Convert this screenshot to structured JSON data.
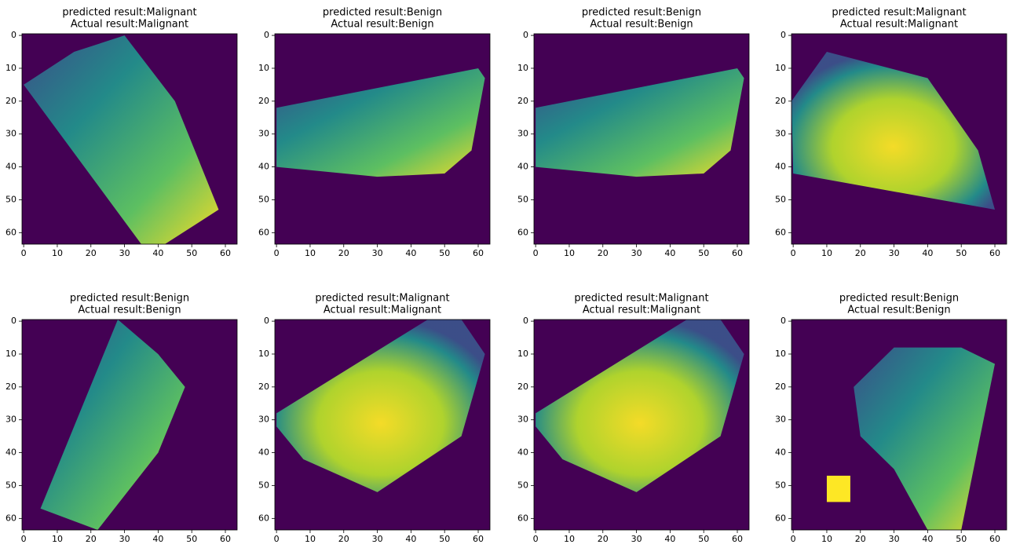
{
  "chart_data": [
    {
      "type": "image",
      "title": "predicted result:Malignant",
      "subtitle": "Actual result:Malignant",
      "xlim": [
        -0.5,
        63.5
      ],
      "ylim": [
        63.5,
        -0.5
      ],
      "xticks": [
        0,
        10,
        20,
        30,
        40,
        50,
        60
      ],
      "yticks": [
        0,
        10,
        20,
        30,
        40,
        50,
        60
      ]
    },
    {
      "type": "image",
      "title": "predicted result:Benign",
      "subtitle": "Actual result:Benign",
      "xlim": [
        -0.5,
        63.5
      ],
      "ylim": [
        63.5,
        -0.5
      ],
      "xticks": [
        0,
        10,
        20,
        30,
        40,
        50,
        60
      ],
      "yticks": [
        0,
        10,
        20,
        30,
        40,
        50,
        60
      ]
    },
    {
      "type": "image",
      "title": "predicted result:Benign",
      "subtitle": "Actual result:Benign",
      "xlim": [
        -0.5,
        63.5
      ],
      "ylim": [
        63.5,
        -0.5
      ],
      "xticks": [
        0,
        10,
        20,
        30,
        40,
        50,
        60
      ],
      "yticks": [
        0,
        10,
        20,
        30,
        40,
        50,
        60
      ]
    },
    {
      "type": "image",
      "title": "predicted result:Malignant",
      "subtitle": "Actual result:Malignant",
      "xlim": [
        -0.5,
        63.5
      ],
      "ylim": [
        63.5,
        -0.5
      ],
      "xticks": [
        0,
        10,
        20,
        30,
        40,
        50,
        60
      ],
      "yticks": [
        0,
        10,
        20,
        30,
        40,
        50,
        60
      ]
    },
    {
      "type": "image",
      "title": "predicted result:Benign",
      "subtitle": "Actual result:Benign",
      "xlim": [
        -0.5,
        63.5
      ],
      "ylim": [
        63.5,
        -0.5
      ],
      "xticks": [
        0,
        10,
        20,
        30,
        40,
        50,
        60
      ],
      "yticks": [
        0,
        10,
        20,
        30,
        40,
        50,
        60
      ]
    },
    {
      "type": "image",
      "title": "predicted result:Malignant",
      "subtitle": "Actual result:Malignant",
      "xlim": [
        -0.5,
        63.5
      ],
      "ylim": [
        63.5,
        -0.5
      ],
      "xticks": [
        0,
        10,
        20,
        30,
        40,
        50,
        60
      ],
      "yticks": [
        0,
        10,
        20,
        30,
        40,
        50,
        60
      ]
    },
    {
      "type": "image",
      "title": "predicted result:Malignant",
      "subtitle": "Actual result:Malignant",
      "xlim": [
        -0.5,
        63.5
      ],
      "ylim": [
        63.5,
        -0.5
      ],
      "xticks": [
        0,
        10,
        20,
        30,
        40,
        50,
        60
      ],
      "yticks": [
        0,
        10,
        20,
        30,
        40,
        50,
        60
      ]
    },
    {
      "type": "image",
      "title": "predicted result:Benign",
      "subtitle": "Actual result:Benign",
      "xlim": [
        -0.5,
        63.5
      ],
      "ylim": [
        63.5,
        -0.5
      ],
      "xticks": [
        0,
        10,
        20,
        30,
        40,
        50,
        60
      ],
      "yticks": [
        0,
        10,
        20,
        30,
        40,
        50,
        60
      ]
    }
  ]
}
